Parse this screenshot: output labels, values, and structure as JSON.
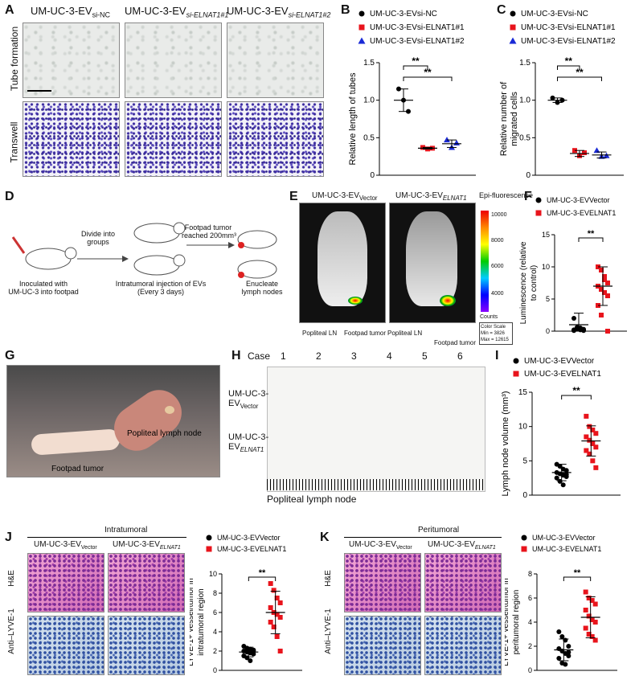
{
  "panels": {
    "A": {
      "label": "A",
      "col1": "UM-UC-3-EV",
      "col1_sub": "si-NC",
      "col2": "UM-UC-3-EV",
      "col2_sub": "si-ELNAT1#1",
      "col3": "UM-UC-3-EV",
      "col3_sub": "si-ELNAT1#2",
      "row1": "Tube formation",
      "row2": "Transwell"
    },
    "B": {
      "label": "B"
    },
    "C": {
      "label": "C"
    },
    "D": {
      "label": "D",
      "step1": "Inoculated with",
      "step1b": "UM-UC-3 into footpad",
      "step2a": "Divide into",
      "step2b": "groups",
      "step3a": "Intratumoral injection of EVs",
      "step3b": "(Every 3 days)",
      "step4a": "Footpad tumor",
      "step4b": "reached 200mm³",
      "step5a": "Enucleate",
      "step5b": "lymph nodes"
    },
    "E": {
      "label": "E",
      "title1": "UM-UC-3-EV",
      "title1_sub": "Vector",
      "title2": "UM-UC-3-EV",
      "title2_sub": "ELNAT1",
      "epi": "Epi-fluorescence",
      "scale": [
        "10000",
        "8000",
        "6000",
        "4000"
      ],
      "counts": "Counts",
      "ln1": "Popliteal LN",
      "ft1": "Footpad tumor",
      "ln2": "Popliteal LN",
      "ft2": "Footpad tumor",
      "cs1": "Color Scale",
      "cs2": "Min = 3826",
      "cs3": "Max = 12615"
    },
    "F": {
      "label": "F"
    },
    "G": {
      "label": "G",
      "pln": "Popliteal lymph node",
      "ft": "Footpad tumor"
    },
    "H": {
      "label": "H",
      "case": "Case",
      "cases": [
        "1",
        "2",
        "3",
        "4",
        "5",
        "6"
      ],
      "row1a": "UM-UC-3-",
      "row1b": "EV",
      "row1sub": "Vector",
      "row2a": "UM-UC-3-",
      "row2b": "EV",
      "row2sub": "ELNAT1",
      "caption": "Popliteal lymph node"
    },
    "I": {
      "label": "I"
    },
    "J": {
      "label": "J",
      "header": "Intratumoral",
      "c1": "UM-UC-3-EV",
      "c1s": "Vector",
      "c2": "UM-UC-3-EV",
      "c2s": "ELNAT1",
      "r1": "H&E",
      "r2": "Anti–LYVE-1"
    },
    "K": {
      "label": "K",
      "header": "Peritumoral",
      "c1": "UM-UC-3-EV",
      "c1s": "Vector",
      "c2": "UM-UC-3-EV",
      "c2s": "ELNAT1",
      "r1": "H&E",
      "r2": "Anti–LYVE-1"
    }
  },
  "chart_data": [
    {
      "id": "B",
      "type": "scatter",
      "ylabel": "Relative length of tubes",
      "ylim": [
        0,
        1.5
      ],
      "yticks": [
        "0",
        "0.5",
        "1.0",
        "1.5"
      ],
      "legend": [
        "UM-UC-3-EVsi-NC",
        "UM-UC-3-EVsi-ELNAT1#1",
        "UM-UC-3-EVsi-ELNAT1#2"
      ],
      "series": [
        {
          "name": "UM-UC-3-EVsi-NC",
          "values": [
            1.15,
            1.0,
            0.85
          ],
          "mean": 1.0,
          "sd": 0.15
        },
        {
          "name": "UM-UC-3-EVsi-ELNAT1#1",
          "values": [
            0.37,
            0.35,
            0.36
          ],
          "mean": 0.36,
          "sd": 0.01
        },
        {
          "name": "UM-UC-3-EVsi-ELNAT1#2",
          "values": [
            0.47,
            0.37,
            0.43
          ],
          "mean": 0.42,
          "sd": 0.05
        }
      ],
      "sig": [
        "**",
        "**"
      ]
    },
    {
      "id": "C",
      "type": "scatter",
      "ylabel": "Relative number of migrated cells",
      "ylim": [
        0,
        1.5
      ],
      "yticks": [
        "0",
        "0.5",
        "1.0",
        "1.5"
      ],
      "legend": [
        "UM-UC-3-EVsi-NC",
        "UM-UC-3-EVsi-ELNAT1#1",
        "UM-UC-3-EVsi-ELNAT1#2"
      ],
      "series": [
        {
          "name": "UM-UC-3-EVsi-NC",
          "values": [
            1.03,
            0.97,
            1.0
          ],
          "mean": 1.0,
          "sd": 0.03
        },
        {
          "name": "UM-UC-3-EVsi-ELNAT1#1",
          "values": [
            0.33,
            0.26,
            0.3
          ],
          "mean": 0.29,
          "sd": 0.04
        },
        {
          "name": "UM-UC-3-EVsi-ELNAT1#2",
          "values": [
            0.33,
            0.25,
            0.26
          ],
          "mean": 0.27,
          "sd": 0.04
        }
      ],
      "sig": [
        "**",
        "**"
      ]
    },
    {
      "id": "F",
      "type": "scatter",
      "ylabel": "Luminescence (relative to control)",
      "ylim": [
        0,
        15
      ],
      "yticks": [
        "0",
        "5",
        "10",
        "15"
      ],
      "legend": [
        "UM-UC-3-EVVector",
        "UM-UC-3-EVELNAT1"
      ],
      "series": [
        {
          "name": "UM-UC-3-EVVector",
          "values": [
            0.2,
            0.3,
            0.5,
            0.1,
            2.0,
            0.4,
            0.2,
            0.3,
            0.1,
            0.6,
            0.3,
            0.2
          ],
          "mean": 1.0,
          "sd": 1.8
        },
        {
          "name": "UM-UC-3-EVELNAT1",
          "values": [
            10.0,
            9.5,
            8.0,
            7.5,
            7.0,
            6.5,
            6.0,
            5.5,
            4.0,
            2.5,
            8.5,
            0.0
          ],
          "mean": 7.0,
          "sd": 3.0
        }
      ],
      "sig": [
        "**"
      ]
    },
    {
      "id": "I",
      "type": "scatter",
      "ylabel": "Lymph node volume (mm³)",
      "ylim": [
        0,
        15
      ],
      "yticks": [
        "0",
        "5",
        "10",
        "15"
      ],
      "legend": [
        "UM-UC-3-EVVector",
        "UM-UC-3-EVELNAT1"
      ],
      "series": [
        {
          "name": "UM-UC-3-EVVector",
          "values": [
            4.5,
            4.2,
            3.8,
            3.6,
            3.3,
            3.1,
            2.9,
            2.7,
            2.5,
            2.0,
            1.5,
            3.0
          ],
          "mean": 3.3,
          "sd": 1.2
        },
        {
          "name": "UM-UC-3-EVELNAT1",
          "values": [
            11.5,
            10.0,
            9.5,
            9.0,
            8.5,
            8.0,
            7.5,
            7.0,
            6.5,
            6.0,
            5.0,
            4.0
          ],
          "mean": 7.9,
          "sd": 2.2
        }
      ],
      "sig": [
        "**"
      ]
    },
    {
      "id": "J",
      "type": "scatter",
      "ylabel": "LYVE-1+ vessel/tumor in intratumoral region",
      "ylim": [
        0,
        10
      ],
      "yticks": [
        "0",
        "2",
        "4",
        "6",
        "8",
        "10"
      ],
      "legend": [
        "UM-UC-3-EVVector",
        "UM-UC-3-EVELNAT1"
      ],
      "series": [
        {
          "name": "UM-UC-3-EVVector",
          "values": [
            2.5,
            2.3,
            2.2,
            2.0,
            2.0,
            1.9,
            1.8,
            1.7,
            1.5,
            1.3,
            1.0,
            2.1
          ],
          "mean": 1.9,
          "sd": 0.5
        },
        {
          "name": "UM-UC-3-EVELNAT1",
          "values": [
            9.0,
            8.3,
            7.5,
            7.0,
            6.5,
            6.0,
            5.8,
            5.5,
            5.0,
            4.5,
            3.5,
            2.0
          ],
          "mean": 6.0,
          "sd": 2.2
        }
      ],
      "sig": [
        "**"
      ]
    },
    {
      "id": "K",
      "type": "scatter",
      "ylabel": "LYVE-1+ vessel/tumor in peritumoral region",
      "ylim": [
        0,
        8
      ],
      "yticks": [
        "0",
        "2",
        "4",
        "6",
        "8"
      ],
      "legend": [
        "UM-UC-3-EVVector",
        "UM-UC-3-EVELNAT1"
      ],
      "series": [
        {
          "name": "UM-UC-3-EVVector",
          "values": [
            3.2,
            2.8,
            2.5,
            2.0,
            1.8,
            1.6,
            1.4,
            1.2,
            1.0,
            0.6,
            0.5,
            1.5
          ],
          "mean": 1.7,
          "sd": 0.9
        },
        {
          "name": "UM-UC-3-EVELNAT1",
          "values": [
            6.5,
            6.0,
            5.8,
            5.5,
            5.0,
            4.5,
            4.2,
            4.0,
            3.5,
            3.0,
            2.8,
            2.5
          ],
          "mean": 4.4,
          "sd": 1.7
        }
      ],
      "sig": [
        "**"
      ]
    }
  ]
}
